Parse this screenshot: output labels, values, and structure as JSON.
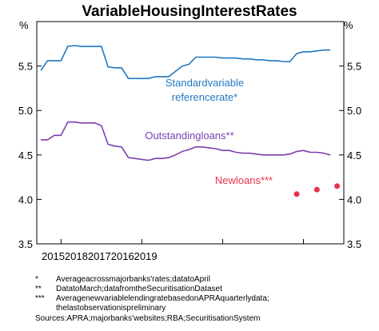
{
  "chart_data": {
    "type": "line",
    "title": "VariableHousingInterestRates",
    "unit_left": "%",
    "unit_right": "%",
    "ylim": [
      3.5,
      6.0
    ],
    "yticks": [
      3.5,
      4.0,
      4.5,
      5.0,
      5.5
    ],
    "ytick_labels": [
      "3.5",
      "4.0",
      "4.5",
      "5.0",
      "5.5"
    ],
    "xlim": [
      2015.7,
      2019.5
    ],
    "x_year_label_text": "20152018201720162019",
    "x_tick_years": [
      2016,
      2017,
      2018,
      2019
    ],
    "series": [
      {
        "name": "Standardvariable referencerate*",
        "label_lines": [
          "Standardvariable",
          "referencerate*"
        ],
        "color": "#1f77c0",
        "style": "line",
        "points": [
          [
            2015.75,
            5.45
          ],
          [
            2015.833,
            5.56
          ],
          [
            2015.917,
            5.56
          ],
          [
            2016.0,
            5.56
          ],
          [
            2016.083,
            5.72
          ],
          [
            2016.167,
            5.73
          ],
          [
            2016.25,
            5.72
          ],
          [
            2016.333,
            5.72
          ],
          [
            2016.417,
            5.72
          ],
          [
            2016.5,
            5.72
          ],
          [
            2016.583,
            5.49
          ],
          [
            2016.667,
            5.48
          ],
          [
            2016.75,
            5.48
          ],
          [
            2016.833,
            5.36
          ],
          [
            2016.917,
            5.36
          ],
          [
            2017.0,
            5.36
          ],
          [
            2017.083,
            5.36
          ],
          [
            2017.167,
            5.38
          ],
          [
            2017.25,
            5.38
          ],
          [
            2017.333,
            5.38
          ],
          [
            2017.417,
            5.44
          ],
          [
            2017.5,
            5.5
          ],
          [
            2017.583,
            5.52
          ],
          [
            2017.667,
            5.6
          ],
          [
            2017.75,
            5.6
          ],
          [
            2017.833,
            5.6
          ],
          [
            2017.917,
            5.6
          ],
          [
            2018.0,
            5.59
          ],
          [
            2018.083,
            5.59
          ],
          [
            2018.167,
            5.59
          ],
          [
            2018.25,
            5.58
          ],
          [
            2018.333,
            5.58
          ],
          [
            2018.417,
            5.57
          ],
          [
            2018.5,
            5.57
          ],
          [
            2018.583,
            5.56
          ],
          [
            2018.667,
            5.56
          ],
          [
            2018.75,
            5.55
          ],
          [
            2018.833,
            5.55
          ],
          [
            2018.917,
            5.64
          ],
          [
            2019.0,
            5.66
          ],
          [
            2019.083,
            5.66
          ],
          [
            2019.167,
            5.67
          ],
          [
            2019.25,
            5.68
          ],
          [
            2019.333,
            5.68
          ]
        ]
      },
      {
        "name": "Outstandingloans**",
        "label_lines": [
          "Outstandingloans**"
        ],
        "color": "#7b3fb0",
        "style": "line",
        "points": [
          [
            2015.75,
            4.67
          ],
          [
            2015.833,
            4.67
          ],
          [
            2015.917,
            4.72
          ],
          [
            2016.0,
            4.72
          ],
          [
            2016.083,
            4.87
          ],
          [
            2016.167,
            4.87
          ],
          [
            2016.25,
            4.86
          ],
          [
            2016.333,
            4.86
          ],
          [
            2016.417,
            4.86
          ],
          [
            2016.5,
            4.83
          ],
          [
            2016.583,
            4.62
          ],
          [
            2016.667,
            4.6
          ],
          [
            2016.75,
            4.59
          ],
          [
            2016.833,
            4.47
          ],
          [
            2016.917,
            4.46
          ],
          [
            2017.0,
            4.45
          ],
          [
            2017.083,
            4.44
          ],
          [
            2017.167,
            4.46
          ],
          [
            2017.25,
            4.46
          ],
          [
            2017.333,
            4.47
          ],
          [
            2017.417,
            4.5
          ],
          [
            2017.5,
            4.54
          ],
          [
            2017.583,
            4.56
          ],
          [
            2017.667,
            4.59
          ],
          [
            2017.75,
            4.59
          ],
          [
            2017.833,
            4.58
          ],
          [
            2017.917,
            4.57
          ],
          [
            2018.0,
            4.55
          ],
          [
            2018.083,
            4.55
          ],
          [
            2018.167,
            4.53
          ],
          [
            2018.25,
            4.52
          ],
          [
            2018.333,
            4.52
          ],
          [
            2018.417,
            4.51
          ],
          [
            2018.5,
            4.5
          ],
          [
            2018.583,
            4.5
          ],
          [
            2018.667,
            4.5
          ],
          [
            2018.75,
            4.5
          ],
          [
            2018.833,
            4.51
          ],
          [
            2018.917,
            4.54
          ],
          [
            2019.0,
            4.55
          ],
          [
            2019.083,
            4.53
          ],
          [
            2019.167,
            4.53
          ],
          [
            2019.25,
            4.52
          ],
          [
            2019.333,
            4.5
          ]
        ]
      },
      {
        "name": "Newloans***",
        "label_lines": [
          "Newloans***"
        ],
        "color": "#e8334a",
        "style": "dots",
        "points": [
          [
            2018.917,
            4.06
          ],
          [
            2019.167,
            4.11
          ],
          [
            2019.417,
            4.15
          ]
        ]
      }
    ],
    "grid": false
  },
  "notes": [
    {
      "marker": "*",
      "text": "Averageacrossmajorbanks'rates;datatoApril"
    },
    {
      "marker": "**",
      "text": "DatatoMarch;datafromtheSecuritisationDataset"
    },
    {
      "marker": "***",
      "text": "AveragenewvariablelendingratebasedonAPRAquarterlydata; thelastobservationispreliminary"
    }
  ],
  "source": "Sources:APRA;majorbanks'websites;RBA;SecuritisationSystem"
}
